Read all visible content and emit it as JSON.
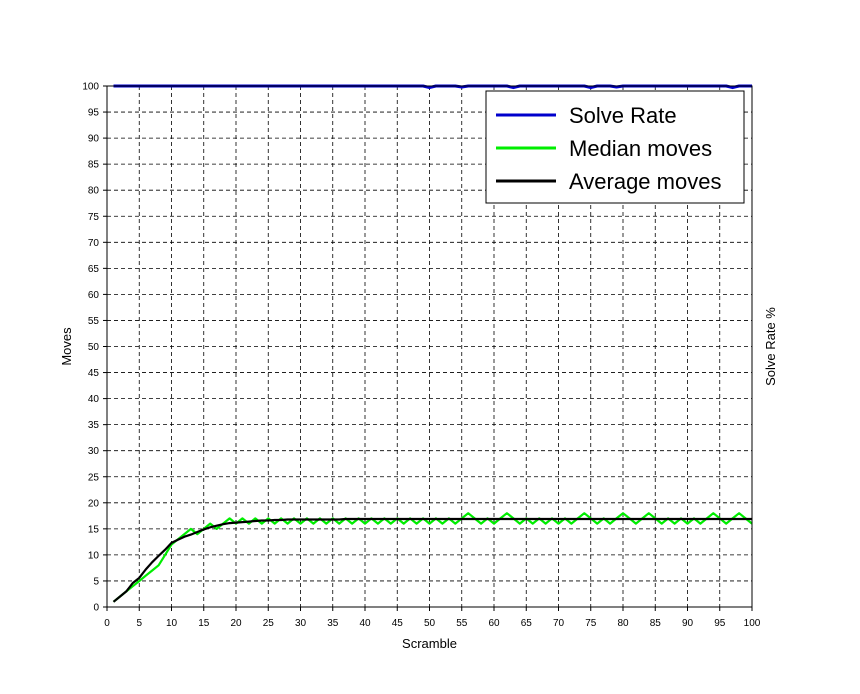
{
  "chart_data": {
    "type": "line",
    "title": "",
    "xlabel": "Scramble",
    "ylabel": "Moves",
    "y2label": "Solve Rate %",
    "xlim": [
      0,
      100
    ],
    "ylim": [
      0,
      100
    ],
    "xticks": [
      0,
      5,
      10,
      15,
      20,
      25,
      30,
      35,
      40,
      45,
      50,
      55,
      60,
      65,
      70,
      75,
      80,
      85,
      90,
      95,
      100
    ],
    "yticks": [
      0,
      5,
      10,
      15,
      20,
      25,
      30,
      35,
      40,
      45,
      50,
      55,
      60,
      65,
      70,
      75,
      80,
      85,
      90,
      95,
      100
    ],
    "grid": true,
    "legend_position": "top-right",
    "series": [
      {
        "name": "Solve Rate",
        "color": "#0000cc",
        "x": [
          1,
          2,
          3,
          4,
          5,
          6,
          7,
          8,
          9,
          10,
          11,
          12,
          13,
          14,
          15,
          16,
          17,
          18,
          19,
          20,
          21,
          22,
          23,
          24,
          25,
          26,
          27,
          28,
          29,
          30,
          31,
          32,
          33,
          34,
          35,
          36,
          37,
          38,
          39,
          40,
          41,
          42,
          43,
          44,
          45,
          46,
          47,
          48,
          49,
          50,
          51,
          52,
          53,
          54,
          55,
          56,
          57,
          58,
          59,
          60,
          61,
          62,
          63,
          64,
          65,
          66,
          67,
          68,
          69,
          70,
          71,
          72,
          73,
          74,
          75,
          76,
          77,
          78,
          79,
          80,
          81,
          82,
          83,
          84,
          85,
          86,
          87,
          88,
          89,
          90,
          91,
          92,
          93,
          94,
          95,
          96,
          97,
          98,
          99,
          100
        ],
        "values": [
          100,
          100,
          100,
          100,
          100,
          100,
          100,
          100,
          100,
          100,
          100,
          100,
          100,
          100,
          100,
          100,
          100,
          100,
          100,
          100,
          100,
          100,
          100,
          100,
          100,
          100,
          100,
          100,
          100,
          100,
          100,
          100,
          100,
          100,
          100,
          100,
          100,
          100,
          100,
          100,
          100,
          100,
          100,
          100,
          100,
          100,
          100,
          100,
          100,
          99.7,
          100,
          100,
          100,
          100,
          99.8,
          100,
          100,
          100,
          100,
          100,
          100,
          100,
          99.7,
          100,
          100,
          100,
          100,
          100,
          100,
          100,
          100,
          100,
          100,
          100,
          99.7,
          100,
          100,
          100,
          99.8,
          100,
          100,
          100,
          100,
          100,
          100,
          100,
          100,
          100,
          100,
          100,
          100,
          100,
          100,
          100,
          100,
          100,
          99.7,
          100,
          100,
          100
        ]
      },
      {
        "name": "Median moves",
        "color": "#00ee00",
        "x": [
          1,
          2,
          3,
          4,
          5,
          6,
          7,
          8,
          9,
          10,
          11,
          12,
          13,
          14,
          15,
          16,
          17,
          18,
          19,
          20,
          21,
          22,
          23,
          24,
          25,
          26,
          27,
          28,
          29,
          30,
          31,
          32,
          33,
          34,
          35,
          36,
          37,
          38,
          39,
          40,
          41,
          42,
          43,
          44,
          45,
          46,
          47,
          48,
          49,
          50,
          51,
          52,
          53,
          54,
          55,
          56,
          57,
          58,
          59,
          60,
          61,
          62,
          63,
          64,
          65,
          66,
          67,
          68,
          69,
          70,
          71,
          72,
          73,
          74,
          75,
          76,
          77,
          78,
          79,
          80,
          81,
          82,
          83,
          84,
          85,
          86,
          87,
          88,
          89,
          90,
          91,
          92,
          93,
          94,
          95,
          96,
          97,
          98,
          99,
          100
        ],
        "values": [
          1,
          2,
          3,
          4,
          5,
          6,
          7,
          8,
          10,
          12,
          13,
          14,
          15,
          14,
          15,
          16,
          15,
          16,
          17,
          16,
          17,
          16,
          17,
          16,
          17,
          16,
          17,
          16,
          17,
          16,
          17,
          16,
          17,
          16,
          17,
          16,
          17,
          16,
          17,
          16,
          17,
          16,
          17,
          16,
          17,
          16,
          17,
          16,
          17,
          16,
          17,
          16,
          17,
          16,
          17,
          18,
          17,
          16,
          17,
          16,
          17,
          18,
          17,
          16,
          17,
          16,
          17,
          16,
          17,
          16,
          17,
          16,
          17,
          18,
          17,
          16,
          17,
          16,
          17,
          18,
          17,
          16,
          17,
          18,
          17,
          16,
          17,
          16,
          17,
          16,
          17,
          16,
          17,
          18,
          17,
          16,
          17,
          18,
          17,
          16
        ]
      },
      {
        "name": "Average moves",
        "color": "#000000",
        "x": [
          1,
          2,
          3,
          4,
          5,
          6,
          7,
          8,
          9,
          10,
          11,
          12,
          13,
          14,
          15,
          16,
          17,
          18,
          19,
          20,
          21,
          22,
          23,
          24,
          25,
          26,
          27,
          28,
          29,
          30,
          31,
          32,
          33,
          34,
          35,
          36,
          37,
          38,
          39,
          40,
          41,
          42,
          43,
          44,
          45,
          46,
          47,
          48,
          49,
          50,
          51,
          52,
          53,
          54,
          55,
          56,
          57,
          58,
          59,
          60,
          61,
          62,
          63,
          64,
          65,
          66,
          67,
          68,
          69,
          70,
          71,
          72,
          73,
          74,
          75,
          76,
          77,
          78,
          79,
          80,
          81,
          82,
          83,
          84,
          85,
          86,
          87,
          88,
          89,
          90,
          91,
          92,
          93,
          94,
          95,
          96,
          97,
          98,
          99,
          100
        ],
        "values": [
          1,
          2,
          3,
          4.6,
          5.6,
          7.2,
          8.6,
          9.8,
          11,
          12.3,
          12.9,
          13.5,
          13.9,
          14.4,
          14.9,
          15.3,
          15.6,
          15.9,
          16.1,
          16.2,
          16.3,
          16.4,
          16.5,
          16.6,
          16.6,
          16.7,
          16.7,
          16.8,
          16.8,
          16.8,
          16.8,
          16.8,
          16.8,
          16.8,
          16.8,
          16.8,
          16.9,
          16.9,
          16.9,
          16.9,
          16.9,
          16.9,
          16.9,
          16.9,
          16.9,
          16.9,
          16.9,
          16.9,
          16.9,
          16.9,
          16.9,
          16.9,
          16.9,
          16.9,
          16.9,
          16.9,
          16.9,
          16.9,
          16.9,
          16.9,
          16.9,
          16.9,
          16.9,
          16.9,
          16.9,
          16.9,
          16.9,
          16.9,
          16.9,
          16.9,
          16.9,
          16.9,
          16.9,
          16.9,
          16.9,
          16.9,
          16.9,
          16.9,
          16.9,
          16.9,
          16.9,
          16.9,
          16.9,
          16.9,
          16.9,
          16.9,
          16.9,
          16.9,
          16.9,
          16.9,
          16.9,
          16.9,
          16.9,
          16.9,
          16.9,
          16.9,
          16.9,
          16.9,
          16.9,
          16.9
        ]
      }
    ]
  }
}
